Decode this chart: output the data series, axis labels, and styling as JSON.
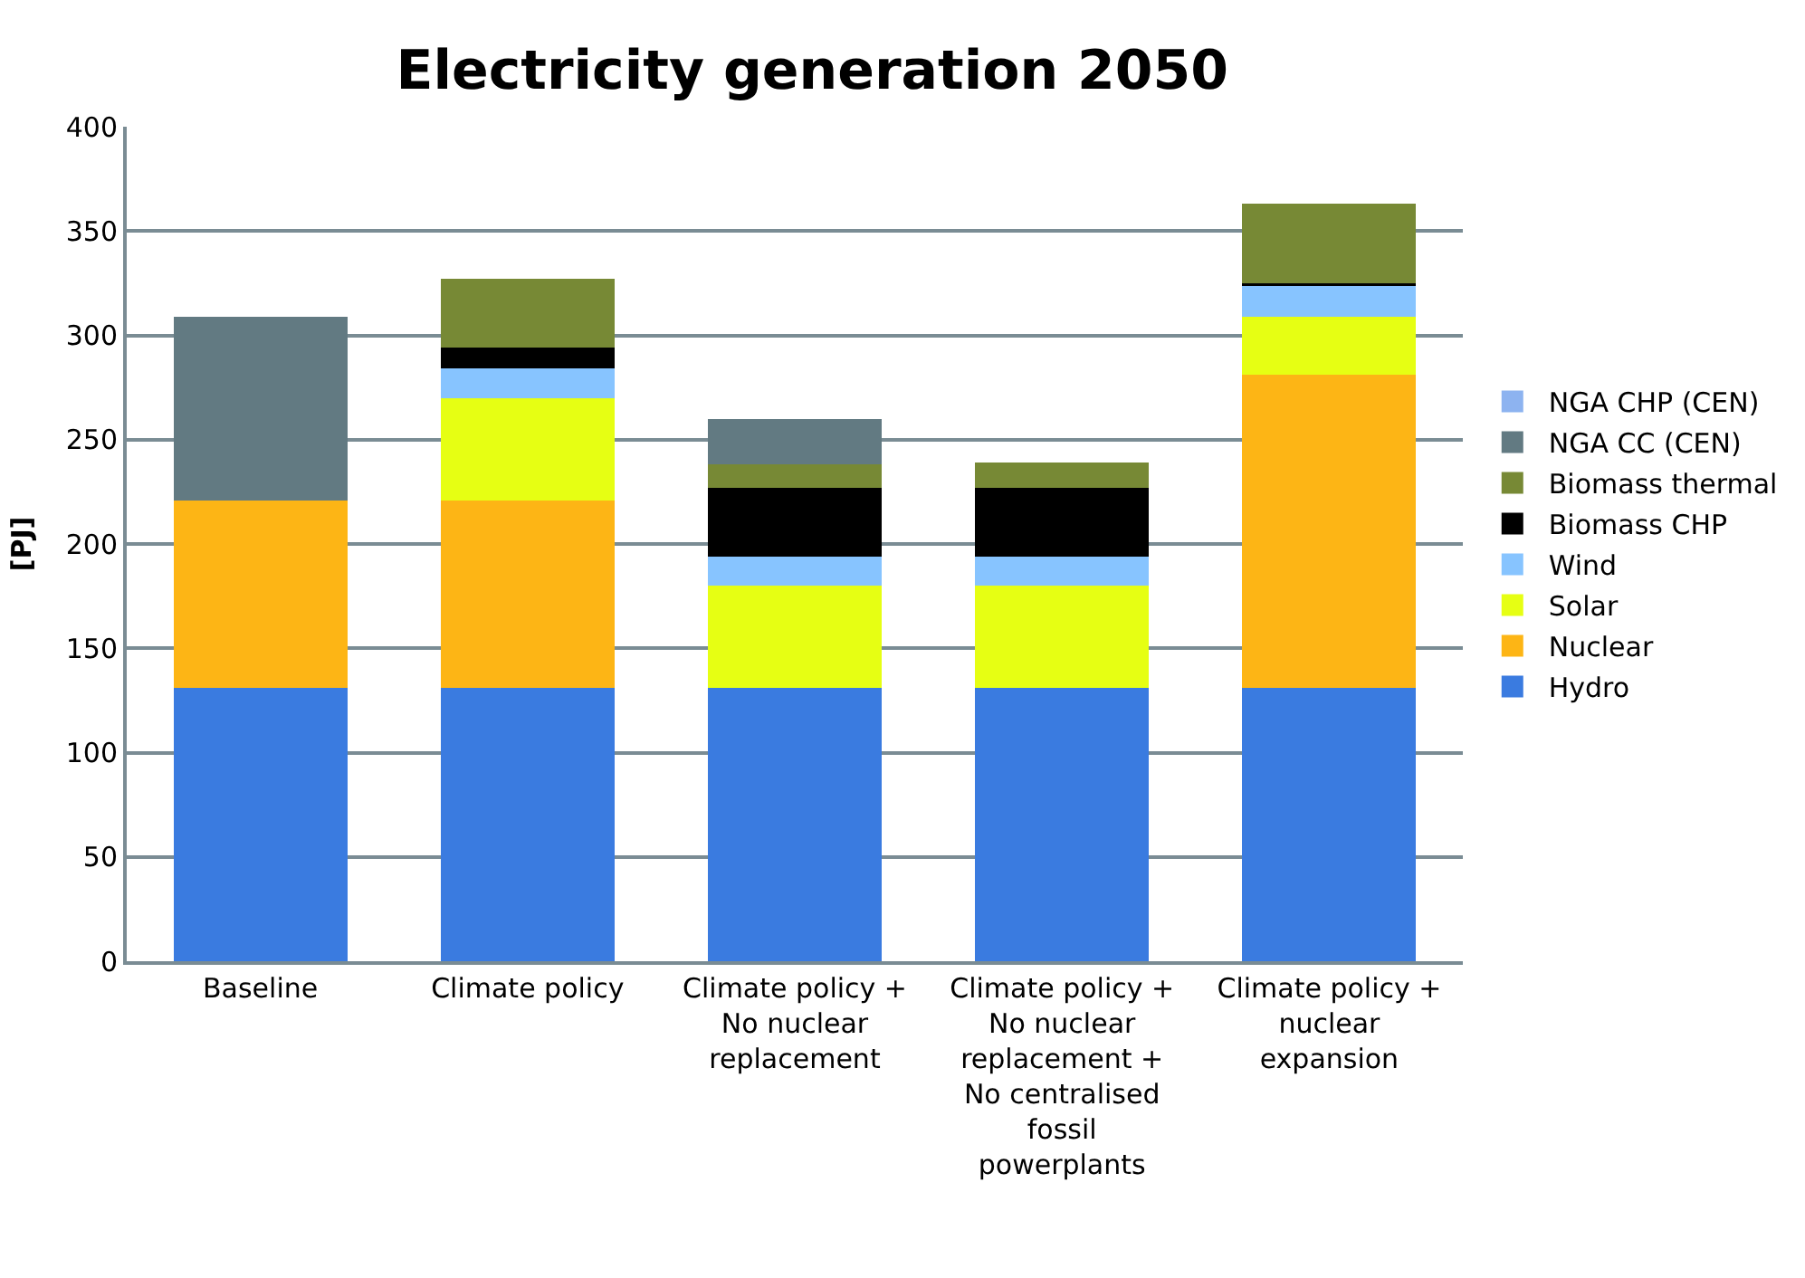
{
  "chart_data": {
    "type": "bar",
    "stacked": true,
    "title": "Electricity generation 2050",
    "ylabel": "[PJ]",
    "categories": [
      "Baseline",
      "Climate policy",
      "Climate policy +\nNo nuclear\nreplacement",
      "Climate policy +\nNo nuclear\nreplacement +\nNo centralised\nfossil\npowerplants",
      "Climate policy +\nnuclear\nexpansion"
    ],
    "series": [
      {
        "name": "Hydro",
        "color": "#3a7be0",
        "values": [
          131,
          131,
          131,
          131,
          131
        ]
      },
      {
        "name": "Nuclear",
        "color": "#fdb515",
        "values": [
          90,
          90,
          0,
          0,
          150
        ]
      },
      {
        "name": "Solar",
        "color": "#e6ff13",
        "values": [
          0,
          49,
          49,
          49,
          28
        ]
      },
      {
        "name": "Wind",
        "color": "#87c4ff",
        "values": [
          0,
          14,
          14,
          14,
          15
        ]
      },
      {
        "name": "Biomass CHP",
        "color": "#000000",
        "values": [
          0,
          10,
          33,
          33,
          1
        ]
      },
      {
        "name": "Biomass thermal",
        "color": "#778935",
        "values": [
          0,
          33,
          11,
          12,
          38
        ]
      },
      {
        "name": "NGA CC (CEN)",
        "color": "#627a82",
        "values": [
          88,
          0,
          22,
          0,
          0
        ]
      },
      {
        "name": "NGA CHP (CEN)",
        "color": "#8db3f0",
        "values": [
          0,
          0,
          0,
          0,
          0
        ]
      }
    ],
    "ylim": [
      0,
      400
    ],
    "yticks": [
      0,
      50,
      100,
      150,
      200,
      250,
      300,
      350,
      400
    ],
    "grid": "y",
    "legend": "right"
  }
}
